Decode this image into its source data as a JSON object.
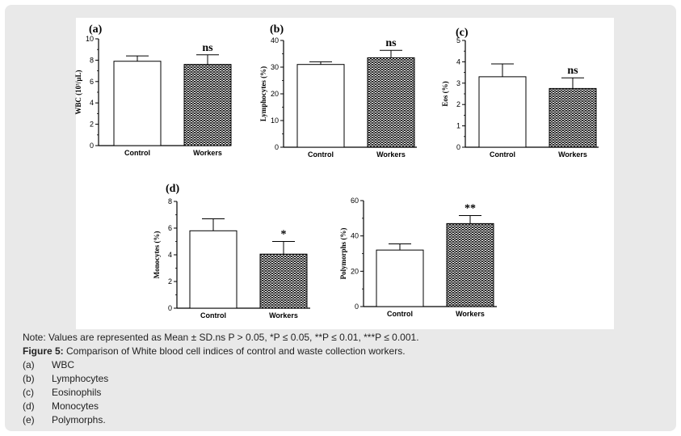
{
  "figure": {
    "note": "Note: Values are represented as Mean ± SD.ns P > 0.05, *P ≤ 0.05, **P ≤ 0.01, ***P ≤ 0.001.",
    "caption_label": "Figure 5:",
    "caption_text": " Comparison of White blood cell indices of control and waste collection workers.",
    "legend": [
      {
        "key": "(a)",
        "text": "WBC"
      },
      {
        "key": "(b)",
        "text": "Lymphocytes"
      },
      {
        "key": "(c)",
        "text": "Eosinophils"
      },
      {
        "key": "(d)",
        "text": "Monocytes"
      },
      {
        "key": "(e)",
        "text": "Polymorphs."
      }
    ]
  },
  "chart_data": [
    {
      "id": "a",
      "type": "bar",
      "panel_label": "(a)",
      "ylabel": "WBC (10³/µL)",
      "categories": [
        "Control",
        "Workers"
      ],
      "values": [
        7.9,
        7.6
      ],
      "errors": [
        0.5,
        0.9
      ],
      "ylim": [
        0,
        10
      ],
      "yticks": [
        0,
        2,
        4,
        6,
        8,
        10
      ],
      "annotation": "ns"
    },
    {
      "id": "b",
      "type": "bar",
      "panel_label": "(b)",
      "ylabel": "Lymphocytes (%)",
      "categories": [
        "Control",
        "Workers"
      ],
      "values": [
        31,
        33.5
      ],
      "errors": [
        1,
        2.8
      ],
      "ylim": [
        0,
        40
      ],
      "yticks": [
        0,
        10,
        20,
        30,
        40
      ],
      "annotation": "ns"
    },
    {
      "id": "c",
      "type": "bar",
      "panel_label": "(c)",
      "ylabel": "Eos (%)",
      "categories": [
        "Control",
        "Workers"
      ],
      "values": [
        3.3,
        2.75
      ],
      "errors": [
        0.6,
        0.5
      ],
      "ylim": [
        0,
        5
      ],
      "yticks": [
        0,
        1,
        2,
        3,
        4,
        5
      ],
      "annotation": "ns"
    },
    {
      "id": "d",
      "type": "bar",
      "panel_label": "(d)",
      "ylabel": "Monocytes (%)",
      "categories": [
        "Control",
        "Workers"
      ],
      "values": [
        5.8,
        4.05
      ],
      "errors": [
        0.9,
        0.95
      ],
      "ylim": [
        0,
        8
      ],
      "yticks": [
        0,
        2,
        4,
        6,
        8
      ],
      "annotation": "*"
    },
    {
      "id": "e",
      "type": "bar",
      "panel_label": "",
      "ylabel": "Polymorphs (%)",
      "categories": [
        "Control",
        "Workers"
      ],
      "values": [
        32,
        47
      ],
      "errors": [
        3.5,
        4.5
      ],
      "ylim": [
        0,
        60
      ],
      "yticks": [
        0,
        20,
        40,
        60
      ],
      "annotation": "**"
    }
  ]
}
